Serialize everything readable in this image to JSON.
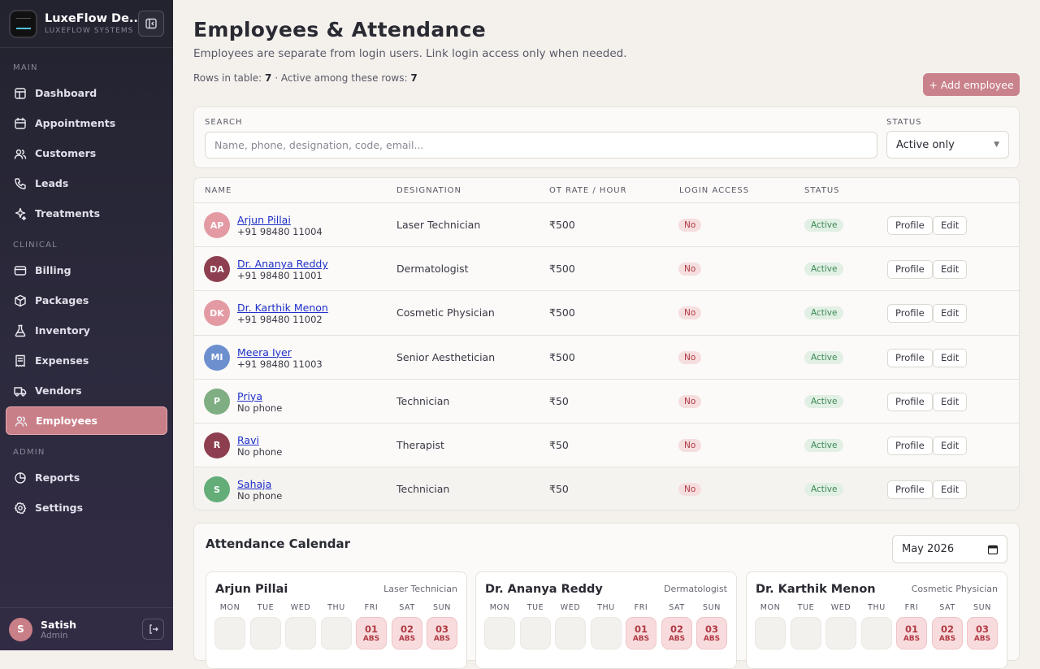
{
  "brand": {
    "name": "LuxeFlow De...",
    "subtitle": "LUXEFLOW SYSTEMS"
  },
  "nav": {
    "main_label": "MAIN",
    "main_items": [
      {
        "label": "Dashboard",
        "icon": "dashboard-icon"
      },
      {
        "label": "Appointments",
        "icon": "calendar-icon"
      },
      {
        "label": "Customers",
        "icon": "users-icon"
      },
      {
        "label": "Leads",
        "icon": "phone-icon"
      },
      {
        "label": "Treatments",
        "icon": "sparkle-icon"
      }
    ],
    "clinical_label": "CLINICAL",
    "clinical_items": [
      {
        "label": "Billing",
        "icon": "card-icon"
      },
      {
        "label": "Packages",
        "icon": "package-icon"
      },
      {
        "label": "Inventory",
        "icon": "flask-icon"
      },
      {
        "label": "Expenses",
        "icon": "receipt-icon"
      },
      {
        "label": "Vendors",
        "icon": "truck-icon"
      },
      {
        "label": "Employees",
        "icon": "employees-icon",
        "active": true
      }
    ],
    "admin_label": "ADMIN",
    "admin_items": [
      {
        "label": "Reports",
        "icon": "reports-icon"
      },
      {
        "label": "Settings",
        "icon": "gear-icon"
      }
    ]
  },
  "user": {
    "initial": "S",
    "name": "Satish",
    "role": "Admin"
  },
  "page": {
    "title": "Employees & Attendance",
    "subtitle": "Employees are separate from login users. Link login access only when needed.",
    "rows_label": "Rows in table:",
    "rows_count": "7",
    "active_label": "· Active among these rows:",
    "active_count": "7",
    "add_button": "+ Add employee"
  },
  "filters": {
    "search_label": "SEARCH",
    "search_placeholder": "Name, phone, designation, code, email...",
    "search_value": "",
    "status_label": "STATUS",
    "status_value": "Active only"
  },
  "table": {
    "headers": {
      "name": "NAME",
      "designation": "DESIGNATION",
      "ot_rate": "OT RATE / HOUR",
      "login": "LOGIN ACCESS",
      "status": "STATUS"
    },
    "profile_label": "Profile",
    "edit_label": "Edit",
    "rows": [
      {
        "initials": "AP",
        "color": "#e39aa3",
        "name": "Arjun Pillai",
        "phone": "+91 98480 11004",
        "designation": "Laser Technician",
        "ot_rate": "₹500",
        "login": "No",
        "status": "Active"
      },
      {
        "initials": "DA",
        "color": "#8e3f4f",
        "name": "Dr. Ananya Reddy",
        "phone": "+91 98480 11001",
        "designation": "Dermatologist",
        "ot_rate": "₹500",
        "login": "No",
        "status": "Active"
      },
      {
        "initials": "DK",
        "color": "#e39aa3",
        "name": "Dr. Karthik Menon",
        "phone": "+91 98480 11002",
        "designation": "Cosmetic Physician",
        "ot_rate": "₹500",
        "login": "No",
        "status": "Active"
      },
      {
        "initials": "MI",
        "color": "#6c8fce",
        "name": "Meera Iyer",
        "phone": "+91 98480 11003",
        "designation": "Senior Aesthetician",
        "ot_rate": "₹500",
        "login": "No",
        "status": "Active"
      },
      {
        "initials": "P",
        "color": "#7fae83",
        "name": "Priya",
        "phone": "No phone",
        "designation": "Technician",
        "ot_rate": "₹50",
        "login": "No",
        "status": "Active"
      },
      {
        "initials": "R",
        "color": "#8e3f4f",
        "name": "Ravi",
        "phone": "No phone",
        "designation": "Therapist",
        "ot_rate": "₹50",
        "login": "No",
        "status": "Active"
      },
      {
        "initials": "S",
        "color": "#62ad78",
        "name": "Sahaja",
        "phone": "No phone",
        "designation": "Technician",
        "ot_rate": "₹50",
        "login": "No",
        "status": "Active"
      }
    ]
  },
  "calendar": {
    "title": "Attendance Calendar",
    "month": "May 2026",
    "weekdays": [
      "MON",
      "TUE",
      "WED",
      "THU",
      "FRI",
      "SAT",
      "SUN"
    ],
    "absent_label": "ABS",
    "employees": [
      {
        "name": "Arjun Pillai",
        "designation": "Laser Technician",
        "days": [
          "01",
          "02",
          "03"
        ]
      },
      {
        "name": "Dr. Ananya Reddy",
        "designation": "Dermatologist",
        "days": [
          "01",
          "02",
          "03"
        ]
      },
      {
        "name": "Dr. Karthik Menon",
        "designation": "Cosmetic Physician",
        "days": [
          "01",
          "02",
          "03"
        ]
      }
    ]
  }
}
